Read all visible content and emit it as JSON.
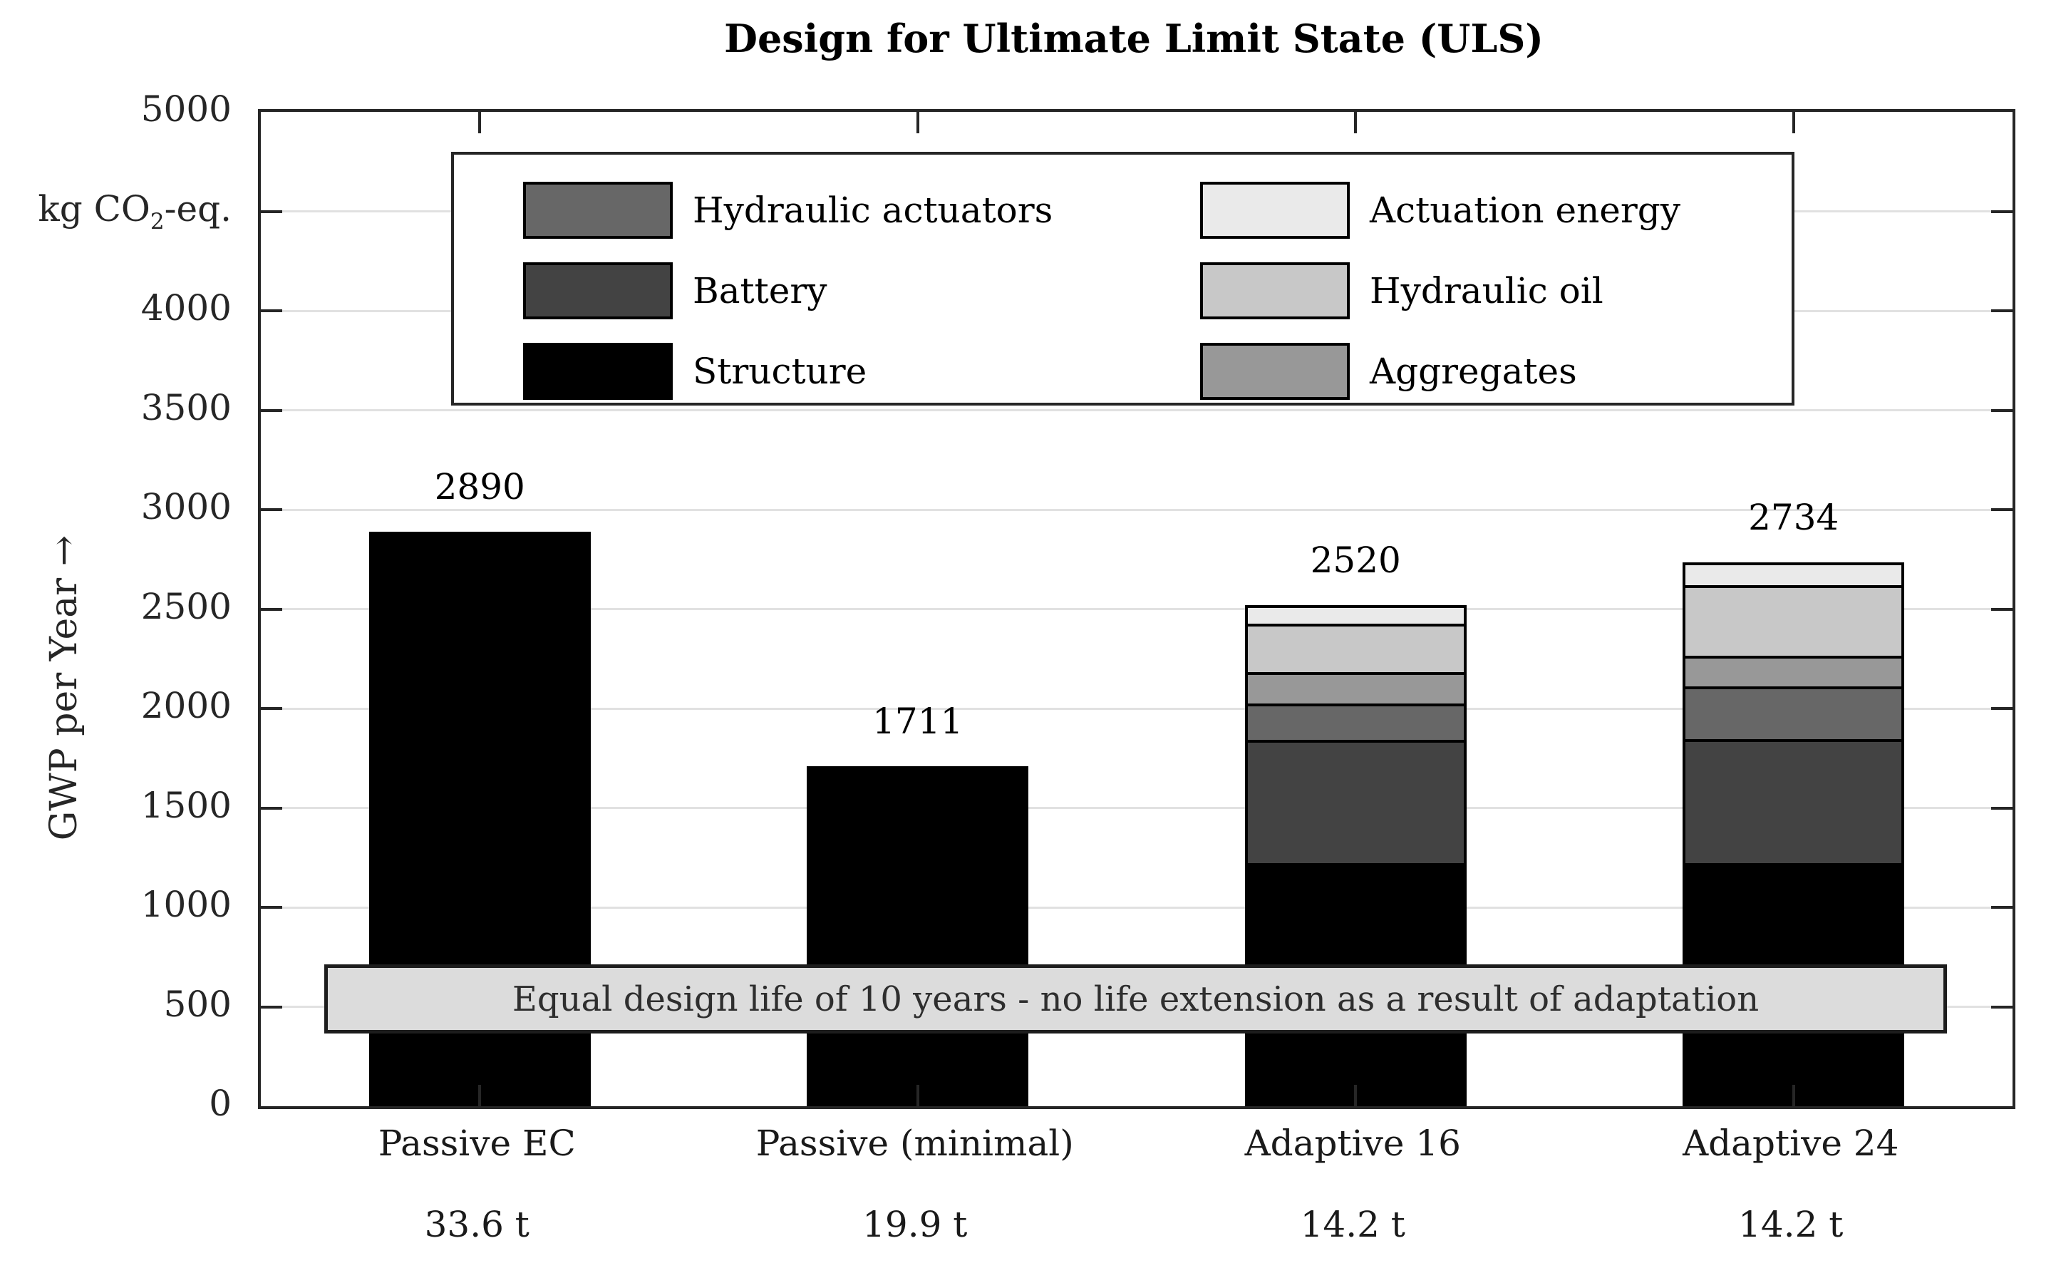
{
  "title": "Design for Ultimate Limit State (ULS)",
  "colors": {
    "structure": "#000000",
    "battery": "#434343",
    "hydraulic_actuators": "#676767",
    "aggregates": "#989898",
    "hydraulic_oil": "#c8c8c8",
    "actuation_energy": "#eaeaea",
    "banner_bg": "#dcdcdc",
    "banner_border": "#1d1d1d",
    "axis": "#262626",
    "gridline": "#e1e1e1"
  },
  "y_axis": {
    "axis_label": "GWP per Year",
    "axis_label_arrow": "→",
    "unit_label": "kg CO₂-eq.",
    "ticks": [
      {
        "v": 5000,
        "label": "5000"
      },
      {
        "v": 4500,
        "label": "kg CO₂-eq."
      },
      {
        "v": 4000,
        "label": "4000"
      },
      {
        "v": 3500,
        "label": "3500"
      },
      {
        "v": 3000,
        "label": "3000"
      },
      {
        "v": 2500,
        "label": "2500"
      },
      {
        "v": 2000,
        "label": "2000"
      },
      {
        "v": 1500,
        "label": "1500"
      },
      {
        "v": 1000,
        "label": "1000"
      },
      {
        "v": 500,
        "label": "500"
      },
      {
        "v": 0,
        "label": "0"
      }
    ]
  },
  "legend": {
    "entries": [
      {
        "label": "Hydraulic actuators",
        "color": "#676767"
      },
      {
        "label": "Battery",
        "color": "#434343"
      },
      {
        "label": "Structure",
        "color": "#000000"
      },
      {
        "label": "Actuation energy",
        "color": "#eaeaea"
      },
      {
        "label": "Hydraulic oil",
        "color": "#c8c8c8"
      },
      {
        "label": "Aggregates",
        "color": "#989898"
      }
    ]
  },
  "chart_data": {
    "type": "bar",
    "stacked": true,
    "title": "Design for Ultimate Limit State (ULS)",
    "ylabel": "GWP per Year (kg CO₂-eq.)",
    "ylim": [
      0,
      5000
    ],
    "grid": true,
    "legend_position": "top-center",
    "annotation": "Equal design life of 10 years - no life extension as a result of adaptation",
    "categories": [
      "Passive EC",
      "Passive (minimal)",
      "Adaptive 16",
      "Adaptive 24"
    ],
    "category_sublabels": [
      "33.6 t",
      "19.9 t",
      "14.2 t",
      "14.2 t"
    ],
    "totals": [
      2890,
      1711,
      2520,
      2734
    ],
    "total_labels": [
      "2890",
      "1711",
      "2520",
      "2734"
    ],
    "series": [
      {
        "name": "Structure",
        "color": "#000000",
        "values": [
          2890,
          1711,
          1220,
          1220
        ]
      },
      {
        "name": "Battery",
        "color": "#434343",
        "values": [
          0,
          0,
          630,
          630
        ]
      },
      {
        "name": "Hydraulic actuators",
        "color": "#676767",
        "values": [
          0,
          0,
          185,
          270
        ]
      },
      {
        "name": "Aggregates",
        "color": "#989898",
        "values": [
          0,
          0,
          160,
          155
        ]
      },
      {
        "name": "Hydraulic oil",
        "color": "#c8c8c8",
        "values": [
          0,
          0,
          245,
          360
        ]
      },
      {
        "name": "Actuation energy",
        "color": "#eaeaea",
        "values": [
          0,
          0,
          80,
          99
        ]
      }
    ]
  }
}
